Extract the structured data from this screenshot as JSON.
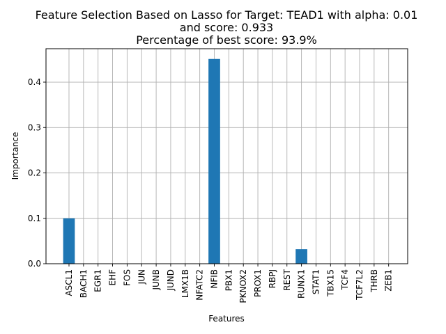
{
  "chart_data": {
    "type": "bar",
    "title_lines": [
      "Feature Selection Based on Lasso for Target: TEAD1 with alpha: 0.01",
      "and score: 0.933",
      "Percentage of best score: 93.9%"
    ],
    "xlabel": "Features",
    "ylabel": "Importance",
    "categories": [
      "ASCL1",
      "BACH1",
      "EGR1",
      "EHF",
      "FOS",
      "JUN",
      "JUNB",
      "JUND",
      "LMX1B",
      "NFATC2",
      "NFIB",
      "PBX1",
      "PKNOX2",
      "PROX1",
      "RBPJ",
      "REST",
      "RUNX1",
      "STAT1",
      "TBX15",
      "TCF4",
      "TCF7L2",
      "THRB",
      "ZEB1"
    ],
    "values": [
      0.1,
      0,
      0,
      0,
      0,
      0,
      0,
      0,
      0,
      0,
      0.451,
      0,
      0,
      0,
      0,
      0,
      0.032,
      0,
      0,
      0,
      0,
      0,
      0
    ],
    "yticks": [
      "0.0",
      "0.1",
      "0.2",
      "0.3",
      "0.4"
    ],
    "ylim": [
      0,
      0.4736
    ],
    "grid": true,
    "bar_color": "#1f77b4"
  }
}
